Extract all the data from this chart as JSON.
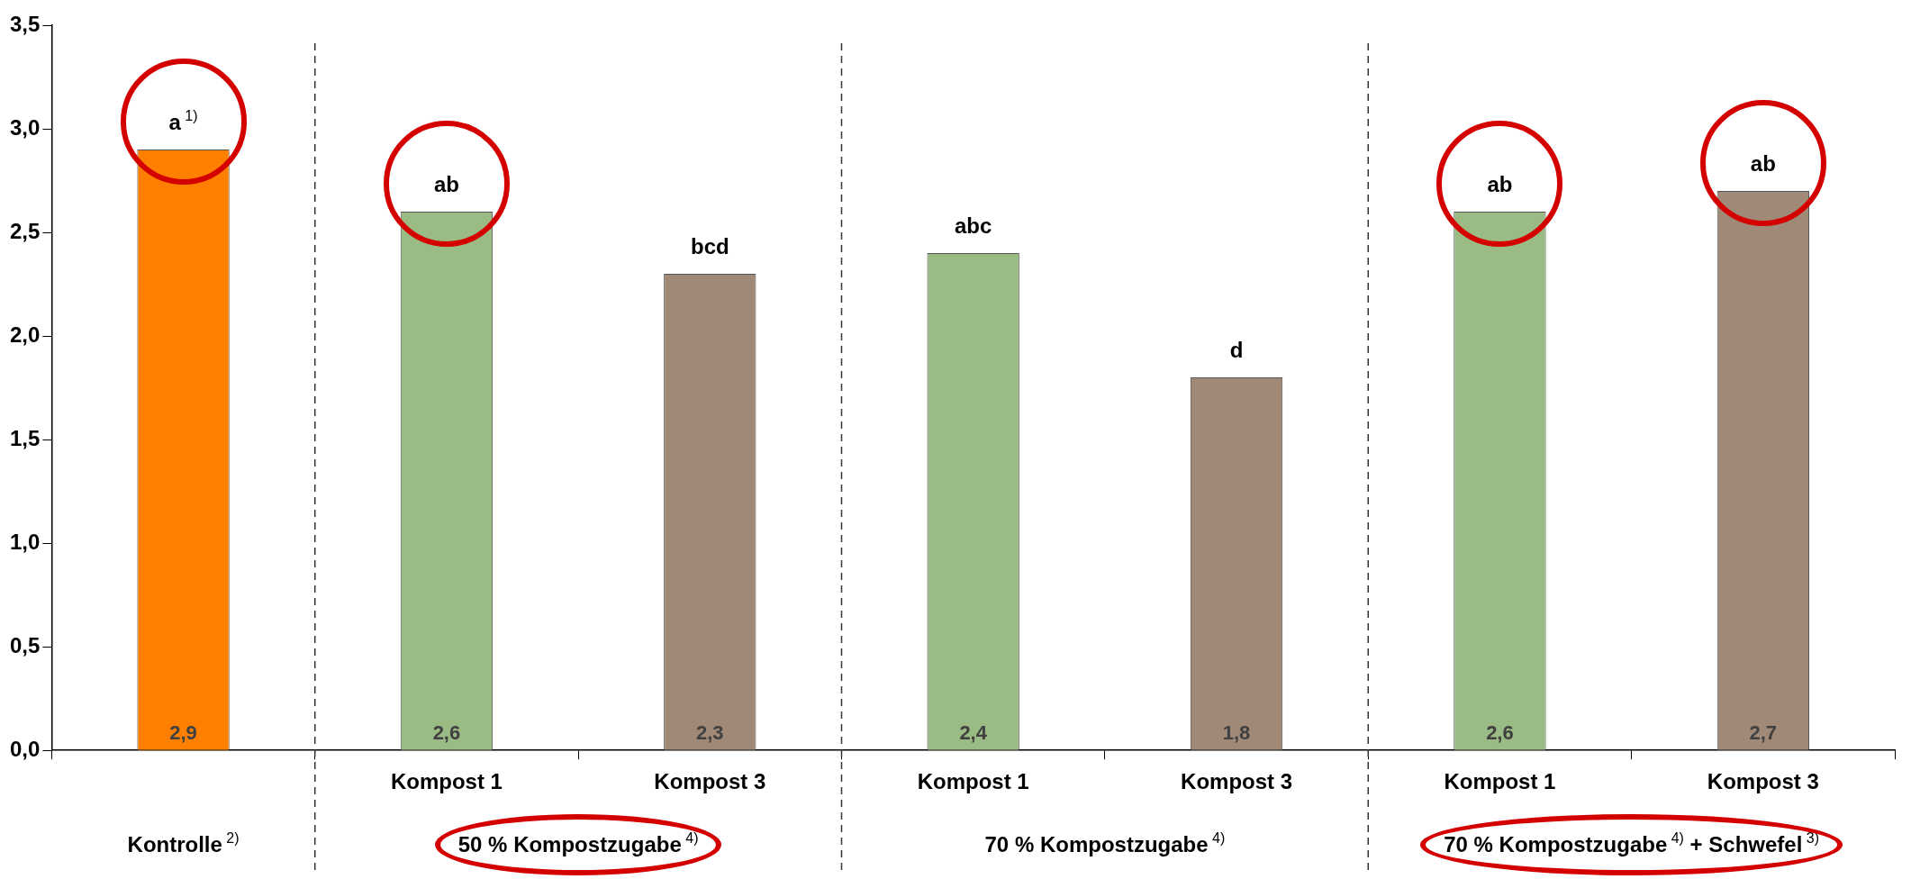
{
  "chart_data": {
    "type": "bar",
    "categories": [
      null,
      "Kompost 1",
      "Kompost 3",
      "Kompost 1",
      "Kompost 3",
      "Kompost 1",
      "Kompost 3"
    ],
    "values": [
      2.9,
      2.6,
      2.3,
      2.4,
      1.8,
      2.6,
      2.7
    ],
    "colors": [
      "#ff8000",
      "#9bbb84",
      "#a08a77",
      "#9bbb84",
      "#a08a77",
      "#9bbb84",
      "#a08a77"
    ],
    "value_labels": [
      "2,9",
      "2,6",
      "2,3",
      "2,4",
      "1,8",
      "2,6",
      "2,7"
    ],
    "ylim": [
      0,
      3.5
    ],
    "yticks": [
      {
        "value": 0,
        "label": "0,0"
      },
      {
        "value": 0.5,
        "label": "0,5"
      },
      {
        "value": 1,
        "label": "1,0"
      },
      {
        "value": 1.5,
        "label": "1,5"
      },
      {
        "value": 2,
        "label": "2,0"
      },
      {
        "value": 2.5,
        "label": "2,5"
      },
      {
        "value": 3,
        "label": "3,0"
      },
      {
        "value": 3.5,
        "label": "3,5"
      }
    ],
    "grid": false,
    "legend": false,
    "annotations": [
      "a$^{1)}$",
      "ab",
      "bcd",
      "abc",
      "d",
      "ab",
      "ab",
      "Kontrolle$^{2)}$",
      "50 % Kompostzugabe$^{4)}$",
      "70 % Kompostzugabe$^{4)}$",
      "70 % Kompostzugabe$^{4)}$ + Schwefel$^{3)}$"
    ]
  }
}
